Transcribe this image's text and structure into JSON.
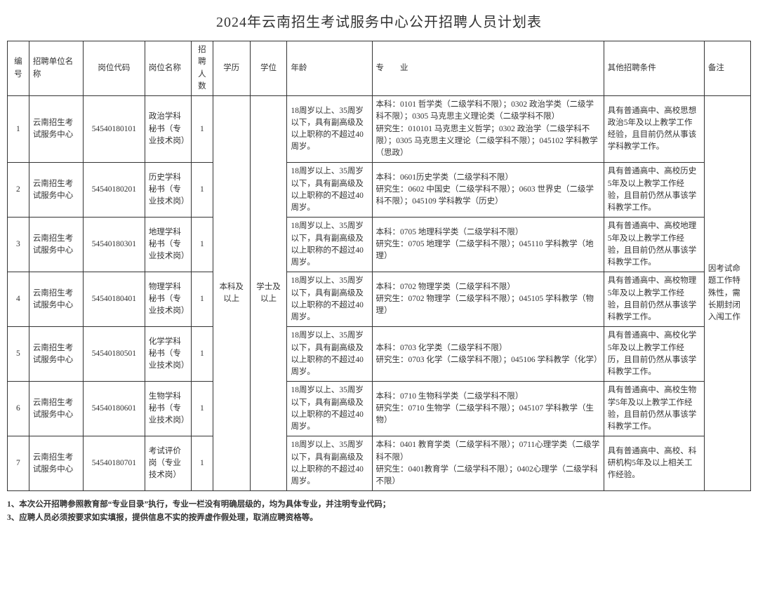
{
  "title": "2024年云南招生考试服务中心公开招聘人员计划表",
  "headers": {
    "num": "编号",
    "org": "招聘单位名称",
    "code": "岗位代码",
    "job": "岗位名称",
    "cnt": "招聘人数",
    "edu": "学历",
    "deg": "学位",
    "age": "年龄",
    "major": "专　　业",
    "other": "其他招聘条件",
    "note": "备注"
  },
  "shared": {
    "edu": "本科及以上",
    "deg": "学士及以上",
    "note": "因考试命题工作特殊性，需长期封闭入闱工作"
  },
  "rows": [
    {
      "num": "1",
      "org": "云南招生考试服务中心",
      "code": "54540180101",
      "job": "政治学科秘书（专业技术岗）",
      "cnt": "1",
      "age": "18周岁以上、35周岁以下，具有副高级及以上职称的不超过40周岁。",
      "major": "本科：0101 哲学类（二级学科不限）；0302 政治学类（二级学科不限）；0305 马克思主义理论类（二级学科不限）\n研究生：010101 马克思主义哲学；0302 政治学（二级学科不限）；0305 马克思主义理论（二级学科不限）；045102 学科教学（思政）",
      "other": "具有普通高中、高校思想政治5年及以上教学工作经验，且目前仍然从事该学科教学工作。"
    },
    {
      "num": "2",
      "org": "云南招生考试服务中心",
      "code": "54540180201",
      "job": "历史学科秘书（专业技术岗）",
      "cnt": "1",
      "age": "18周岁以上、35周岁以下，具有副高级及以上职称的不超过40周岁。",
      "major": "本科：0601历史学类（二级学科不限）\n研究生：0602 中国史（二级学科不限）；0603 世界史（二级学科不限）；045109 学科教学（历史）",
      "other": "具有普通高中、高校历史5年及以上教学工作经验，且目前仍然从事该学科教学工作。"
    },
    {
      "num": "3",
      "org": "云南招生考试服务中心",
      "code": "54540180301",
      "job": "地理学科秘书（专业技术岗）",
      "cnt": "1",
      "age": "18周岁以上、35周岁以下，具有副高级及以上职称的不超过40周岁。",
      "major": "本科：0705 地理科学类（二级学科不限）\n研究生：0705 地理学（二级学科不限）；045110 学科教学（地理）",
      "other": "具有普通高中、高校地理5年及以上教学工作经验，且目前仍然从事该学科教学工作。"
    },
    {
      "num": "4",
      "org": "云南招生考试服务中心",
      "code": "54540180401",
      "job": "物理学科秘书（专业技术岗）",
      "cnt": "1",
      "age": "18周岁以上、35周岁以下，具有副高级及以上职称的不超过40周岁。",
      "major": "本科：0702 物理学类（二级学科不限）\n研究生：0702 物理学（二级学科不限）；045105 学科教学（物理）",
      "other": "具有普通高中、高校物理5年及以上教学工作经验，且目前仍然从事该学科教学工作。"
    },
    {
      "num": "5",
      "org": "云南招生考试服务中心",
      "code": "54540180501",
      "job": "化学学科秘书（专业技术岗）",
      "cnt": "1",
      "age": "18周岁以上、35周岁以下，具有副高级及以上职称的不超过40周岁。",
      "major": "本科：0703 化学类（二级学科不限）\n研究生：0703 化学（二级学科不限）；045106 学科教学（化学）",
      "other": "具有普通高中、高校化学5年及以上教学工作经历，且目前仍然从事该学科教学工作。"
    },
    {
      "num": "6",
      "org": "云南招生考试服务中心",
      "code": "54540180601",
      "job": "生物学科秘书（专业技术岗）",
      "cnt": "1",
      "age": "18周岁以上、35周岁以下，具有副高级及以上职称的不超过40周岁。",
      "major": "本科：0710 生物科学类（二级学科不限）\n研究生：0710 生物学（二级学科不限）；045107 学科教学（生物）",
      "other": "具有普通高中、高校生物学5年及以上教学工作经验，且目前仍然从事该学科教学工作。"
    },
    {
      "num": "7",
      "org": "云南招生考试服务中心",
      "code": "54540180701",
      "job": "考试评价岗（专业技术岗）",
      "cnt": "1",
      "age": "18周岁以上、35周岁以下，具有副高级及以上职称的不超过40周岁。",
      "major": "本科：0401 教育学类（二级学科不限）；0711心理学类（二级学科不限）\n研究生：0401教育学（二级学科不限）；0402心理学（二级学科不限）",
      "other": "具有普通高中、高校、科研机构5年及以上相关工作经验。"
    }
  ],
  "footnotes": [
    "1、本次公开招聘参照教育部“专业目录”执行，专业一栏没有明确层级的，均为具体专业，并注明专业代码；",
    "3、应聘人员必须按要求如实填报，提供信息不实的按弄虚作假处理，取消应聘资格等。"
  ]
}
